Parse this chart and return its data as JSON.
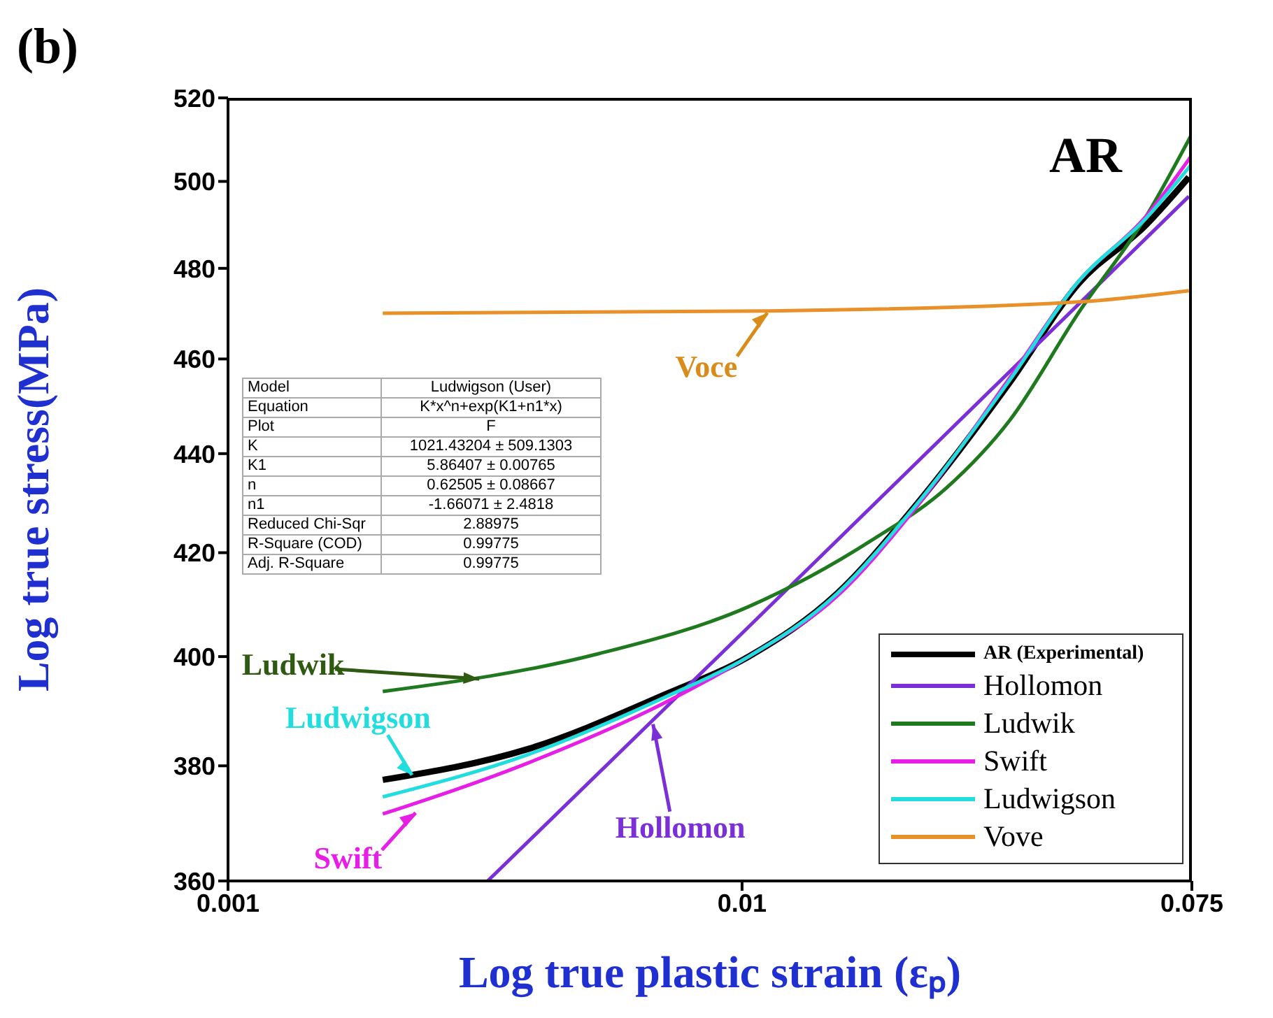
{
  "chart_data": {
    "type": "line",
    "title": "(b)",
    "subtitle": "AR",
    "xlabel": "Log true plastic strain (εₚ)",
    "ylabel": "Log true stress(MPa)",
    "log": "xy",
    "xlim": [
      0.001,
      0.075
    ],
    "xticks": [
      0.001,
      0.01,
      0.075
    ],
    "ylim": [
      360,
      520
    ],
    "yticks": [
      360,
      380,
      400,
      420,
      440,
      460,
      480,
      500,
      520
    ],
    "grid": false,
    "legend": "bottom right",
    "marker": "none",
    "line_style": "solid",
    "series": [
      {
        "name": "AR (Experimental)",
        "color": "#000000",
        "x": [
          0.002,
          0.00383,
          0.0071,
          0.0103,
          0.0153,
          0.0216,
          0.0332,
          0.0451,
          0.0612,
          0.074
        ],
        "values": [
          377.5,
          383,
          393,
          400,
          412,
          429,
          455,
          476.5,
          490,
          501
        ]
      },
      {
        "name": "Hollomon",
        "color": "#7b2fd6",
        "x": [
          0.0032,
          0.01,
          0.074
        ],
        "values": [
          360,
          404.4,
          496.5
        ]
      },
      {
        "name": "Ludwik",
        "color": "#1f7a1f",
        "x": [
          0.002,
          0.00524,
          0.0103,
          0.0179,
          0.025,
          0.0332,
          0.0451,
          0.0612,
          0.0748
        ],
        "values": [
          393.5,
          400.5,
          409.5,
          422.5,
          433,
          447,
          470,
          492,
          511
        ]
      },
      {
        "name": "Swift",
        "color": "#e61ee6",
        "x": [
          0.002,
          0.00383,
          0.0071,
          0.0103,
          0.0153,
          0.0216,
          0.0332,
          0.0451,
          0.0612,
          0.0748
        ],
        "values": [
          371.5,
          380.5,
          391.5,
          400,
          411.5,
          428.5,
          456,
          477,
          492,
          506
        ]
      },
      {
        "name": "Ludwigson",
        "color": "#22dddd",
        "x": [
          0.002,
          0.00383,
          0.0071,
          0.0103,
          0.0153,
          0.0216,
          0.0332,
          0.0451,
          0.0612,
          0.0748
        ],
        "values": [
          374.5,
          382,
          392.5,
          400,
          412,
          429,
          455.5,
          477,
          491.5,
          504
        ]
      },
      {
        "name": "Vove",
        "color": "#e8902a",
        "x": [
          0.002,
          0.0113,
          0.0451,
          0.074
        ],
        "values": [
          470,
          470.5,
          472.5,
          475
        ]
      }
    ],
    "annotations": [
      {
        "text": "Voce",
        "x": 0.0113,
        "y": 470.5
      },
      {
        "text": "Ludwik",
        "x": 0.00312,
        "y": 395.8
      },
      {
        "text": "Ludwigson",
        "x": 0.0023,
        "y": 378
      },
      {
        "text": "Swift",
        "x": 0.00234,
        "y": 372
      },
      {
        "text": "Hollomon",
        "x": 0.00669,
        "y": 388
      },
      "Model",
      "Ludwigson (User)",
      "Equation",
      "K*x^n+exp(K1+n1*x)",
      "Plot",
      "F",
      "K",
      "1021.43204 ± 509.1303",
      "K1",
      "5.86407 ± 0.00765",
      "n",
      "0.62505 ± 0.08667",
      "n1",
      "-1.66071 ± 2.4818",
      "Reduced Chi-Sqr",
      "2.88975",
      "R-Square (COD)",
      "0.99775",
      "Adj. R-Square",
      "0.99775"
    ]
  }
}
